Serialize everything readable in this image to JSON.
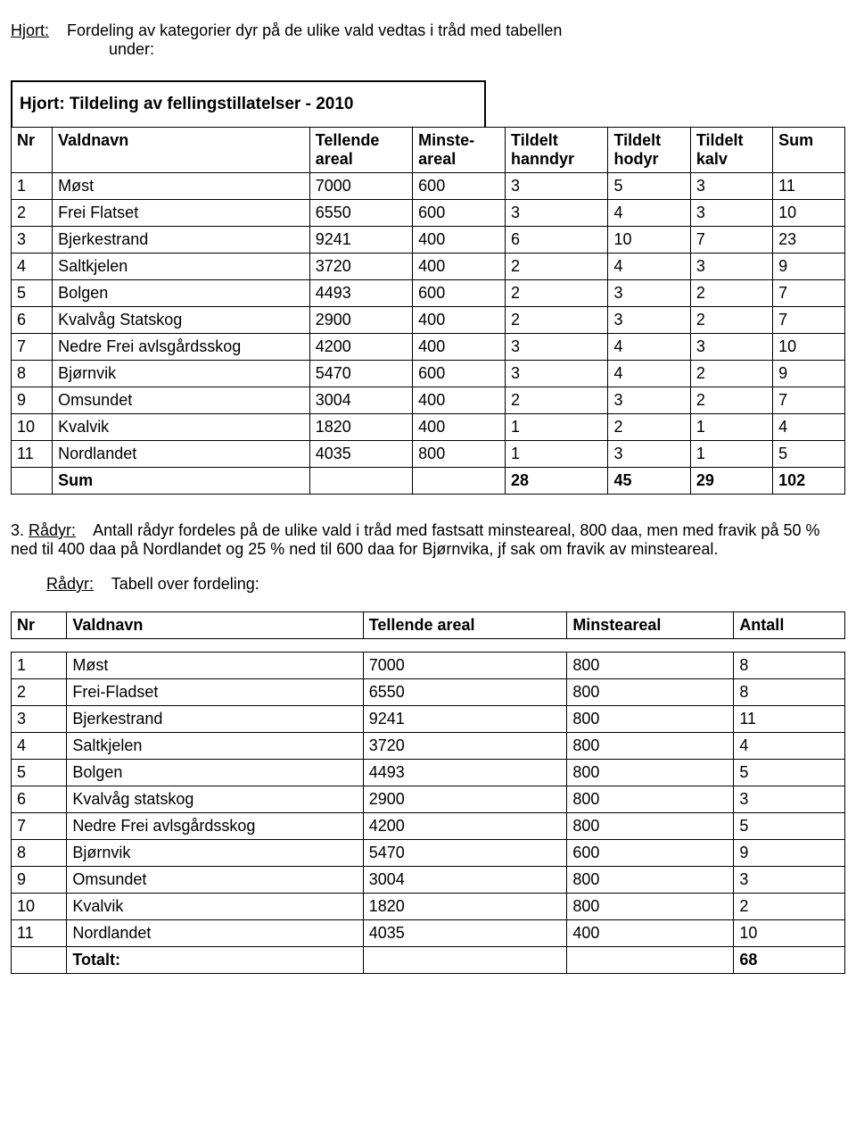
{
  "intro": {
    "label": "Hjort:",
    "text_line1": "Fordeling av kategorier dyr på de ulike vald vedtas i tråd med tabellen",
    "text_line2": "under:"
  },
  "table1": {
    "title": "Hjort: Tildeling av fellingstillatelser - 2010",
    "headers": {
      "nr": "Nr",
      "valdnavn": "Valdnavn",
      "tellende_l1": "Tellende",
      "tellende_l2": "areal",
      "minste_l1": "Minste-",
      "minste_l2": "areal",
      "hanndyr_l1": "Tildelt",
      "hanndyr_l2": "hanndyr",
      "hodyr_l1": "Tildelt",
      "hodyr_l2": "hodyr",
      "kalv_l1": "Tildelt",
      "kalv_l2": "kalv",
      "sum": "Sum"
    },
    "rows": [
      {
        "nr": "1",
        "navn": "Møst",
        "tell": "7000",
        "min": "600",
        "h1": "3",
        "h2": "5",
        "k": "3",
        "s": "11"
      },
      {
        "nr": "2",
        "navn": "Frei Flatset",
        "tell": "6550",
        "min": "600",
        "h1": "3",
        "h2": "4",
        "k": "3",
        "s": "10"
      },
      {
        "nr": "3",
        "navn": "Bjerkestrand",
        "tell": "9241",
        "min": "400",
        "h1": "6",
        "h2": "10",
        "k": "7",
        "s": "23"
      },
      {
        "nr": "4",
        "navn": "Saltkjelen",
        "tell": "3720",
        "min": "400",
        "h1": "2",
        "h2": "4",
        "k": "3",
        "s": "9"
      },
      {
        "nr": "5",
        "navn": "Bolgen",
        "tell": "4493",
        "min": "600",
        "h1": "2",
        "h2": "3",
        "k": "2",
        "s": "7"
      },
      {
        "nr": "6",
        "navn": "Kvalvåg Statskog",
        "tell": "2900",
        "min": "400",
        "h1": "2",
        "h2": "3",
        "k": "2",
        "s": "7"
      },
      {
        "nr": "7",
        "navn": "Nedre Frei avlsgårdsskog",
        "tell": "4200",
        "min": "400",
        "h1": "3",
        "h2": "4",
        "k": "3",
        "s": "10"
      },
      {
        "nr": "8",
        "navn": "Bjørnvik",
        "tell": "5470",
        "min": "600",
        "h1": "3",
        "h2": "4",
        "k": "2",
        "s": "9"
      },
      {
        "nr": "9",
        "navn": "Omsundet",
        "tell": "3004",
        "min": "400",
        "h1": "2",
        "h2": "3",
        "k": "2",
        "s": "7"
      },
      {
        "nr": "10",
        "navn": "Kvalvik",
        "tell": "1820",
        "min": "400",
        "h1": "1",
        "h2": "2",
        "k": "1",
        "s": "4"
      },
      {
        "nr": "11",
        "navn": "Nordlandet",
        "tell": "4035",
        "min": "800",
        "h1": "1",
        "h2": "3",
        "k": "1",
        "s": "5"
      }
    ],
    "sum_row": {
      "label": "Sum",
      "h1": "28",
      "h2": "45",
      "k": "29",
      "s": "102"
    }
  },
  "para3": {
    "num": "3.",
    "label": "Rådyr:",
    "text": "Antall rådyr fordeles på de ulike vald i tråd med fastsatt minsteareal, 800 daa, men med fravik på 50 % ned til 400 daa på Nordlandet og 25 % ned til 600 daa for Bjørnvika, jf sak om fravik av minsteareal."
  },
  "sub": {
    "label": "Rådyr:",
    "text": "Tabell over fordeling:"
  },
  "table2": {
    "headers": {
      "nr": "Nr",
      "valdnavn": "Valdnavn",
      "tellende": "Tellende areal",
      "minste": "Minsteareal",
      "antall": "Antall"
    },
    "rows": [
      {
        "nr": "1",
        "navn": "Møst",
        "tell": "7000",
        "min": "800",
        "a": "8"
      },
      {
        "nr": "2",
        "navn": "Frei-Fladset",
        "tell": "6550",
        "min": "800",
        "a": "8"
      },
      {
        "nr": "3",
        "navn": "Bjerkestrand",
        "tell": "9241",
        "min": "800",
        "a": "11"
      },
      {
        "nr": "4",
        "navn": "Saltkjelen",
        "tell": "3720",
        "min": "800",
        "a": "4"
      },
      {
        "nr": "5",
        "navn": "Bolgen",
        "tell": "4493",
        "min": "800",
        "a": "5"
      },
      {
        "nr": "6",
        "navn": "Kvalvåg statskog",
        "tell": "2900",
        "min": "800",
        "a": "3"
      },
      {
        "nr": "7",
        "navn": "Nedre Frei avlsgårdsskog",
        "tell": "4200",
        "min": "800",
        "a": "5"
      },
      {
        "nr": "8",
        "navn": "Bjørnvik",
        "tell": "5470",
        "min": "600",
        "a": "9"
      },
      {
        "nr": "9",
        "navn": "Omsundet",
        "tell": "3004",
        "min": "800",
        "a": "3"
      },
      {
        "nr": "10",
        "navn": "Kvalvik",
        "tell": "1820",
        "min": "800",
        "a": "2"
      },
      {
        "nr": "11",
        "navn": "Nordlandet",
        "tell": "4035",
        "min": "400",
        "a": "10"
      }
    ],
    "total_row": {
      "label": "Totalt:",
      "a": "68"
    }
  },
  "cols": {
    "t1": {
      "nr": 40,
      "navn": 250,
      "tell": 100,
      "min": 90,
      "h1": 100,
      "h2": 80,
      "k": 80,
      "s": 70
    },
    "t2": {
      "nr": 60,
      "navn": 320,
      "tell": 220,
      "min": 180,
      "a": 120
    }
  }
}
